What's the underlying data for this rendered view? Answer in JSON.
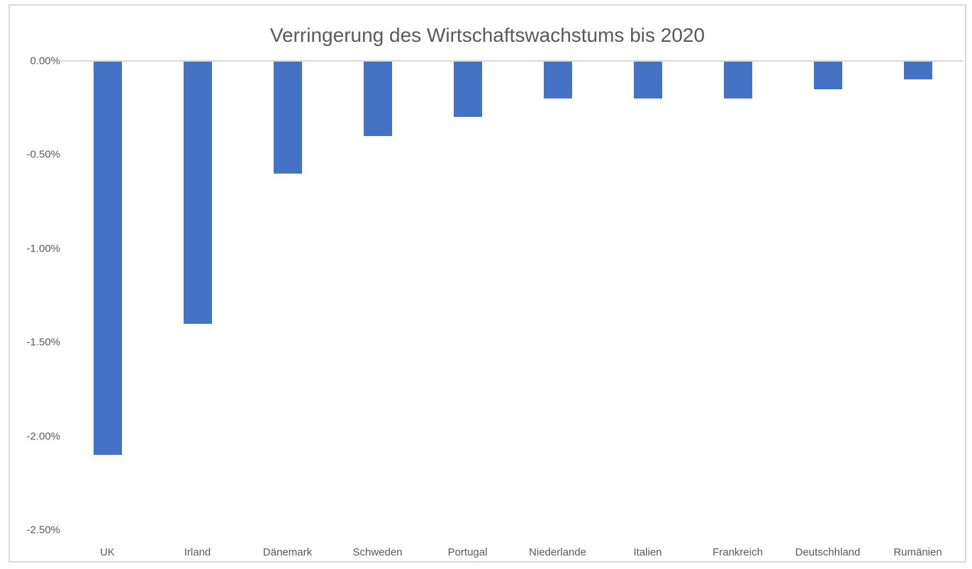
{
  "chart_data": {
    "type": "bar",
    "title": "Verringerung des Wirtschaftswachstums bis 2020",
    "categories": [
      "UK",
      "Irland",
      "Dänemark",
      "Schweden",
      "Portugal",
      "Niederlande",
      "Italien",
      "Frankreich",
      "Deutschhland",
      "Rumänien"
    ],
    "values": [
      -2.1,
      -1.4,
      -0.6,
      -0.4,
      -0.3,
      -0.2,
      -0.2,
      -0.2,
      -0.15,
      -0.1
    ],
    "value_unit": "percent",
    "xlabel": "",
    "ylabel": "",
    "ylim": [
      -2.5,
      0
    ],
    "y_ticks": [
      {
        "label": "0.00%",
        "value": 0
      },
      {
        "label": "-0.50%",
        "value": -0.5
      },
      {
        "label": "-1.00%",
        "value": -1.0
      },
      {
        "label": "-1.50%",
        "value": -1.5
      },
      {
        "label": "-2.00%",
        "value": -2.0
      },
      {
        "label": "-2.50%",
        "value": -2.5
      }
    ],
    "grid": false,
    "legend": false,
    "colors": {
      "bar": "#4472C4",
      "axis_line": "#D9D9D9",
      "frame_border": "#D9D9D9",
      "title_text": "#595959",
      "tick_text": "#595959"
    }
  }
}
